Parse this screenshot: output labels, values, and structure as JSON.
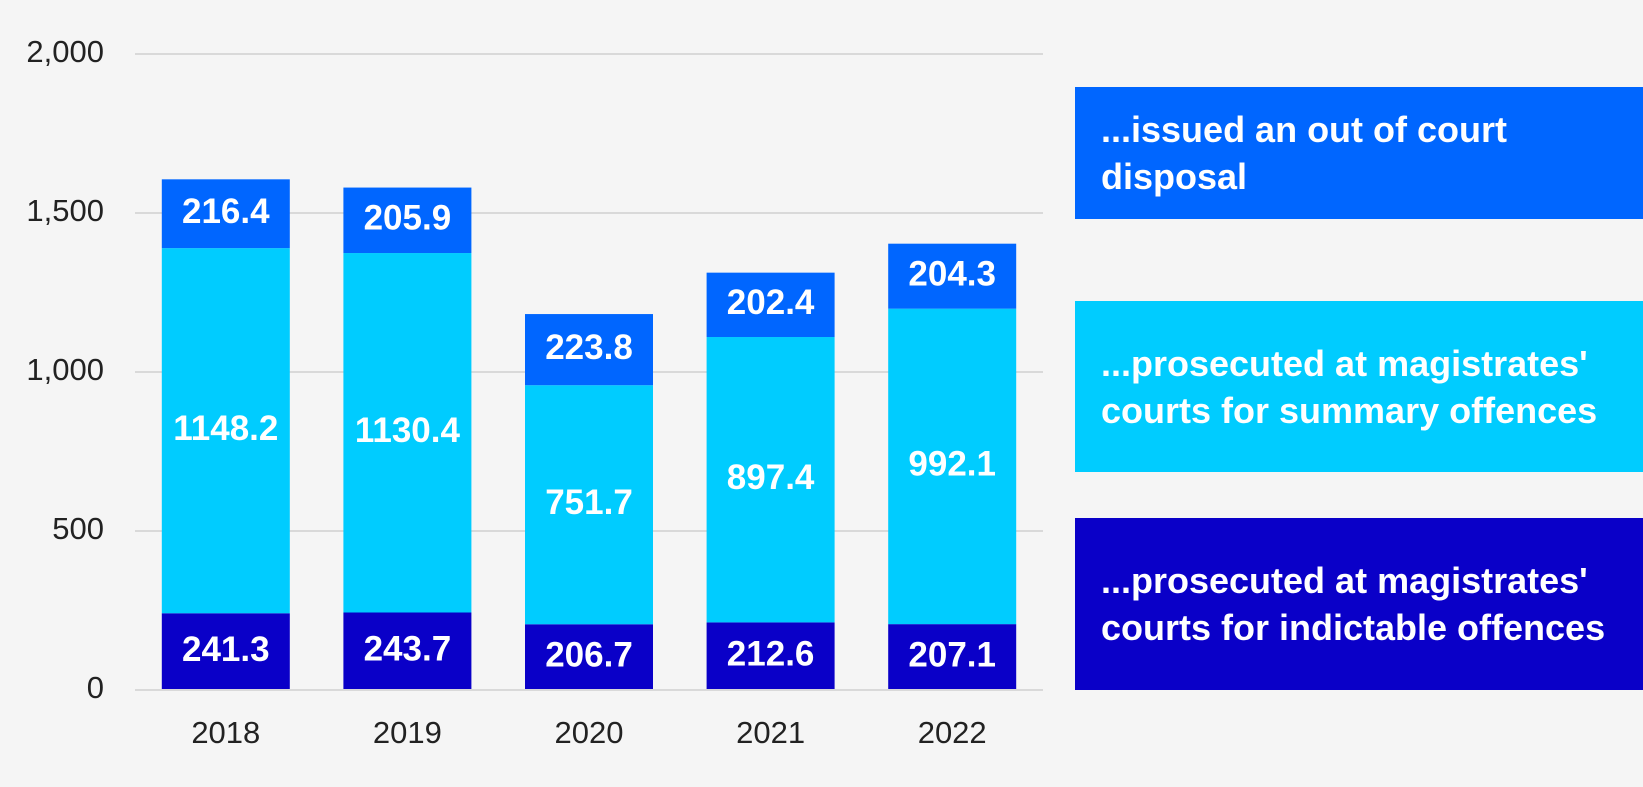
{
  "chart_data": {
    "type": "stacked_bar",
    "categories": [
      "2018",
      "2019",
      "2020",
      "2021",
      "2022"
    ],
    "series": [
      {
        "name": "...prosecuted at magistrates' courts for indictable offences",
        "color": "#0a00c8",
        "values": [
          241.3,
          243.7,
          206.7,
          212.6,
          207.1
        ]
      },
      {
        "name": "...prosecuted at magistrates' courts for summary offences",
        "color": "#00ccff",
        "values": [
          1148.2,
          1130.4,
          751.7,
          897.4,
          992.1
        ]
      },
      {
        "name": "...issued an out of court disposal",
        "color": "#0066ff",
        "values": [
          216.4,
          205.9,
          223.8,
          202.4,
          204.3
        ]
      }
    ],
    "ylim": [
      0,
      2000
    ],
    "yticks": [
      0,
      500,
      {
        "value": 1000,
        "label": "1,000"
      },
      {
        "value": 1500,
        "label": "1,500"
      },
      {
        "value": 2000,
        "label": "2,000"
      }
    ],
    "grid": true,
    "legend": "right"
  }
}
